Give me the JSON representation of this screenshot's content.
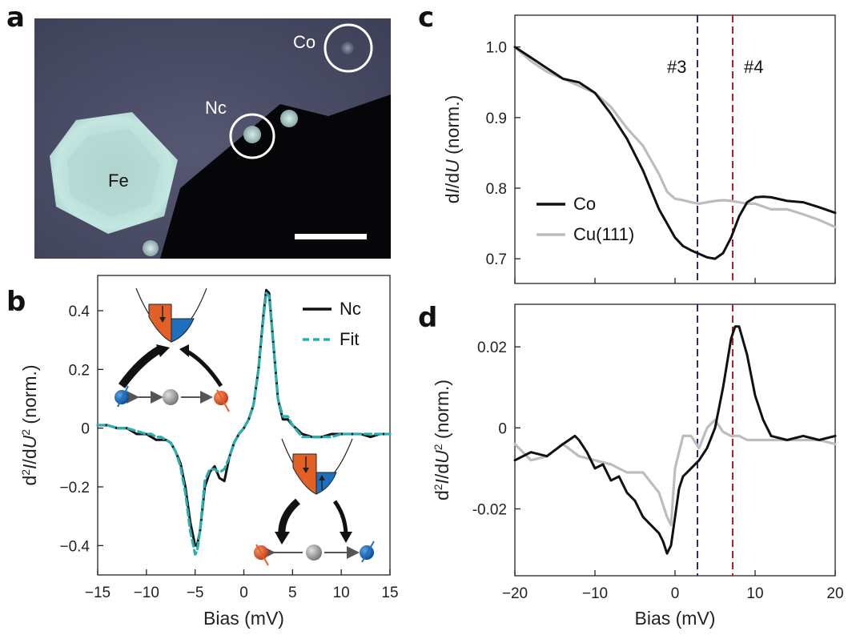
{
  "panels": {
    "a": "a",
    "b": "b",
    "c": "c",
    "d": "d"
  },
  "stm_image": {
    "labels": {
      "fe": "Fe",
      "nc": "Nc",
      "co": "Co"
    },
    "colors": {
      "background": "#4b4d66",
      "island": "#bfe0da",
      "substrate_dark": "#060608",
      "circle": "#ffffff"
    }
  },
  "chart_data": [
    {
      "panel": "b",
      "type": "line",
      "xlabel": "Bias (mV)",
      "ylabel_html": "d<tspan baseline-shift='super' font-size='14'>2</tspan><tspan font-style='italic'>I</tspan>/d<tspan font-style='italic'>U</tspan><tspan baseline-shift='super' font-size='14'>2</tspan> (norm.)",
      "xlim": [
        -15,
        15
      ],
      "ylim": [
        -0.5,
        0.52
      ],
      "xticks": [
        -15,
        -10,
        -5,
        0,
        5,
        10,
        15
      ],
      "xtick_labels": [
        "−15",
        "−10",
        "−5",
        "0",
        "5",
        "10",
        "15"
      ],
      "yticks": [
        -0.4,
        -0.2,
        0,
        0.2,
        0.4
      ],
      "ytick_labels": [
        "−0.4",
        "−0.2",
        "0",
        "0.2",
        "0.4"
      ],
      "legend_position": "top-right",
      "series": [
        {
          "name": "Nc",
          "color": "#111111",
          "dash": "none",
          "x": [
            -15,
            -14,
            -13,
            -12,
            -11,
            -10,
            -9.5,
            -9,
            -8.5,
            -8,
            -7.5,
            -7,
            -6.5,
            -6,
            -5.5,
            -5,
            -4.8,
            -4.5,
            -4,
            -3.5,
            -3,
            -2.5,
            -2,
            -1.5,
            -1,
            -0.5,
            0,
            0.5,
            1,
            1.5,
            2,
            2.3,
            2.6,
            3,
            3.5,
            4,
            4.5,
            5,
            6,
            7,
            8,
            9,
            10,
            11,
            12,
            13,
            14,
            15
          ],
          "y": [
            0.01,
            0.01,
            0.0,
            0.0,
            -0.02,
            -0.02,
            -0.03,
            -0.04,
            -0.04,
            -0.04,
            -0.05,
            -0.08,
            -0.12,
            -0.2,
            -0.32,
            -0.4,
            -0.4,
            -0.35,
            -0.2,
            -0.15,
            -0.13,
            -0.17,
            -0.18,
            -0.1,
            -0.05,
            -0.02,
            0.0,
            0.03,
            0.08,
            0.2,
            0.38,
            0.47,
            0.46,
            0.3,
            0.1,
            0.03,
            0.03,
            0.01,
            -0.02,
            -0.03,
            -0.03,
            -0.02,
            -0.02,
            -0.02,
            -0.02,
            -0.03,
            -0.02,
            -0.02
          ]
        },
        {
          "name": "Fit",
          "color": "#26aeb0",
          "dash": "8,5",
          "x": [
            -15,
            -14,
            -13,
            -12,
            -11,
            -10,
            -9.5,
            -9,
            -8.5,
            -8,
            -7.5,
            -7,
            -6.5,
            -6,
            -5.5,
            -5,
            -4.8,
            -4.5,
            -4,
            -3.5,
            -3,
            -2.5,
            -2,
            -1.5,
            -1,
            -0.5,
            0,
            0.5,
            1,
            1.5,
            2,
            2.3,
            2.6,
            3,
            3.5,
            4,
            4.5,
            5,
            6,
            7,
            8,
            9,
            10,
            11,
            12,
            13,
            14,
            15
          ],
          "y": [
            0.01,
            0.01,
            0.0,
            0.0,
            -0.01,
            -0.02,
            -0.02,
            -0.03,
            -0.03,
            -0.04,
            -0.05,
            -0.08,
            -0.13,
            -0.22,
            -0.35,
            -0.43,
            -0.42,
            -0.35,
            -0.18,
            -0.14,
            -0.14,
            -0.15,
            -0.14,
            -0.1,
            -0.05,
            -0.02,
            0.0,
            0.03,
            0.08,
            0.2,
            0.37,
            0.46,
            0.45,
            0.3,
            0.1,
            0.04,
            0.04,
            0.01,
            -0.03,
            -0.03,
            -0.03,
            -0.03,
            -0.02,
            -0.02,
            -0.02,
            -0.02,
            -0.02,
            -0.02
          ]
        }
      ]
    },
    {
      "panel": "c",
      "type": "line",
      "xlabel": "",
      "ylabel_html": "d<tspan font-style='italic'>I</tspan>/d<tspan font-style='italic'>U</tspan> (norm.)",
      "xlim": [
        -20,
        20
      ],
      "ylim": [
        0.665,
        1.045
      ],
      "xticks": [
        -20,
        -10,
        0,
        10,
        20
      ],
      "xtick_labels": [
        "",
        "",
        "",
        "",
        ""
      ],
      "yticks": [
        0.7,
        0.8,
        0.9,
        1.0
      ],
      "ytick_labels": [
        "0.7",
        "0.8",
        "0.9",
        "1.0"
      ],
      "legend_position": "bottom-left",
      "vlines": [
        {
          "x": 2.8,
          "color": "#2a2a7a",
          "label": "#3"
        },
        {
          "x": 7.2,
          "color": "#b0202a",
          "label": "#4"
        }
      ],
      "series": [
        {
          "name": "Co",
          "color": "#111111",
          "dash": "none",
          "x": [
            -20,
            -18,
            -16,
            -14,
            -12,
            -10,
            -8,
            -6,
            -4,
            -2,
            0,
            1,
            2,
            3,
            4,
            5,
            6,
            7,
            8,
            9,
            10,
            11,
            12,
            14,
            16,
            18,
            20
          ],
          "y": [
            1.0,
            0.985,
            0.97,
            0.955,
            0.95,
            0.935,
            0.905,
            0.87,
            0.825,
            0.77,
            0.73,
            0.718,
            0.712,
            0.707,
            0.702,
            0.7,
            0.708,
            0.73,
            0.76,
            0.78,
            0.787,
            0.788,
            0.787,
            0.782,
            0.78,
            0.773,
            0.765
          ]
        },
        {
          "name": "Cu(111)",
          "color": "#bdbdbd",
          "dash": "none",
          "x": [
            -20,
            -18,
            -16,
            -14,
            -12,
            -10,
            -8,
            -6,
            -4,
            -2,
            -1,
            0,
            1,
            2,
            3,
            4,
            5,
            6,
            7,
            8,
            9,
            10,
            12,
            14,
            16,
            18,
            20
          ],
          "y": [
            1.0,
            0.98,
            0.965,
            0.955,
            0.945,
            0.935,
            0.915,
            0.885,
            0.86,
            0.82,
            0.795,
            0.785,
            0.783,
            0.78,
            0.778,
            0.78,
            0.782,
            0.783,
            0.782,
            0.78,
            0.778,
            0.778,
            0.77,
            0.77,
            0.763,
            0.755,
            0.745
          ]
        }
      ]
    },
    {
      "panel": "d",
      "type": "line",
      "xlabel": "Bias (mV)",
      "ylabel_html": "d<tspan baseline-shift='super' font-size='14'>2</tspan><tspan font-style='italic'>I</tspan>/d<tspan font-style='italic'>U</tspan><tspan baseline-shift='super' font-size='14'>2</tspan> (norm.)",
      "xlim": [
        -20,
        20
      ],
      "ylim": [
        -0.0365,
        0.0305
      ],
      "xticks": [
        -20,
        -10,
        0,
        10,
        20
      ],
      "xtick_labels": [
        "−20",
        "−10",
        "0",
        "10",
        "20"
      ],
      "yticks": [
        -0.02,
        0,
        0.02
      ],
      "ytick_labels": [
        "-0.02",
        "0",
        "0.02"
      ],
      "vlines": [
        {
          "x": 2.8,
          "color": "#2a2a7a",
          "label": ""
        },
        {
          "x": 7.2,
          "color": "#b0202a",
          "label": ""
        }
      ],
      "series": [
        {
          "name": "Co",
          "color": "#111111",
          "dash": "none",
          "x": [
            -20,
            -18,
            -16,
            -14,
            -12.5,
            -12,
            -11,
            -10,
            -9,
            -8,
            -7,
            -6,
            -5,
            -4,
            -3,
            -2,
            -1.5,
            -1,
            -0.5,
            0,
            0.5,
            1,
            2,
            3,
            4,
            5,
            6,
            7,
            7.5,
            8,
            9,
            10,
            11,
            12,
            14,
            16,
            18,
            20
          ],
          "y": [
            -0.008,
            -0.006,
            -0.007,
            -0.004,
            -0.002,
            -0.003,
            -0.006,
            -0.01,
            -0.009,
            -0.013,
            -0.012,
            -0.016,
            -0.018,
            -0.022,
            -0.024,
            -0.026,
            -0.028,
            -0.031,
            -0.029,
            -0.022,
            -0.015,
            -0.012,
            -0.01,
            -0.008,
            -0.005,
            0.0,
            0.01,
            0.022,
            0.025,
            0.025,
            0.018,
            0.008,
            0.002,
            -0.002,
            -0.003,
            -0.002,
            -0.003,
            -0.002
          ]
        },
        {
          "name": "Cu(111)",
          "color": "#bdbdbd",
          "dash": "none",
          "x": [
            -20,
            -18,
            -16,
            -14,
            -12,
            -10,
            -8,
            -6,
            -4,
            -2,
            -1,
            -0.5,
            0,
            1,
            2,
            3,
            4,
            5,
            6,
            7,
            8,
            9,
            10,
            12,
            14,
            16,
            18,
            20
          ],
          "y": [
            -0.004,
            -0.008,
            -0.007,
            -0.004,
            -0.007,
            -0.008,
            -0.009,
            -0.011,
            -0.011,
            -0.016,
            -0.022,
            -0.024,
            -0.01,
            -0.002,
            -0.002,
            -0.005,
            0.0,
            0.002,
            -0.001,
            -0.002,
            -0.002,
            -0.003,
            -0.003,
            -0.003,
            -0.003,
            -0.003,
            -0.003,
            -0.004
          ]
        }
      ]
    }
  ]
}
